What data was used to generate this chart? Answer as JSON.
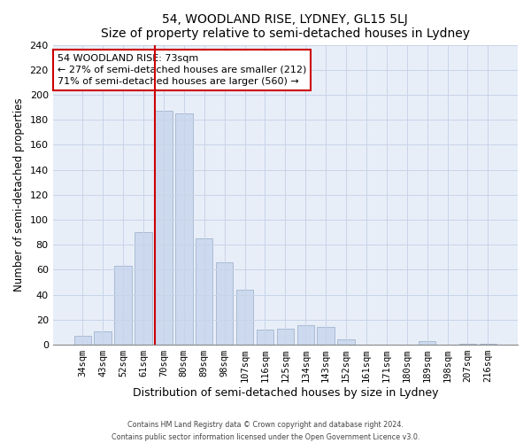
{
  "title": "54, WOODLAND RISE, LYDNEY, GL15 5LJ",
  "subtitle": "Size of property relative to semi-detached houses in Lydney",
  "xlabel": "Distribution of semi-detached houses by size in Lydney",
  "ylabel": "Number of semi-detached properties",
  "categories": [
    "34sqm",
    "43sqm",
    "52sqm",
    "61sqm",
    "70sqm",
    "80sqm",
    "89sqm",
    "98sqm",
    "107sqm",
    "116sqm",
    "125sqm",
    "134sqm",
    "143sqm",
    "152sqm",
    "161sqm",
    "171sqm",
    "180sqm",
    "189sqm",
    "198sqm",
    "207sqm",
    "216sqm"
  ],
  "values": [
    7,
    11,
    63,
    90,
    187,
    185,
    85,
    66,
    44,
    12,
    13,
    16,
    14,
    4,
    0,
    0,
    0,
    3,
    0,
    1,
    1
  ],
  "bar_color": "#ccd9ee",
  "bar_edge_color": "#aabbd4",
  "highlight_index": 4,
  "highlight_line_color": "#cc0000",
  "annotation_text_line1": "54 WOODLAND RISE: 73sqm",
  "annotation_text_line2": "← 27% of semi-detached houses are smaller (212)",
  "annotation_text_line3": "71% of semi-detached houses are larger (560) →",
  "annotation_box_edge_color": "#cc0000",
  "annotation_box_face_color": "#ffffff",
  "ylim": [
    0,
    240
  ],
  "yticks": [
    0,
    20,
    40,
    60,
    80,
    100,
    120,
    140,
    160,
    180,
    200,
    220,
    240
  ],
  "footer_line1": "Contains HM Land Registry data © Crown copyright and database right 2024.",
  "footer_line2": "Contains public sector information licensed under the Open Government Licence v3.0.",
  "background_color": "#ffffff",
  "plot_bg_color": "#e8eef8",
  "grid_color": "#c8d4e8"
}
